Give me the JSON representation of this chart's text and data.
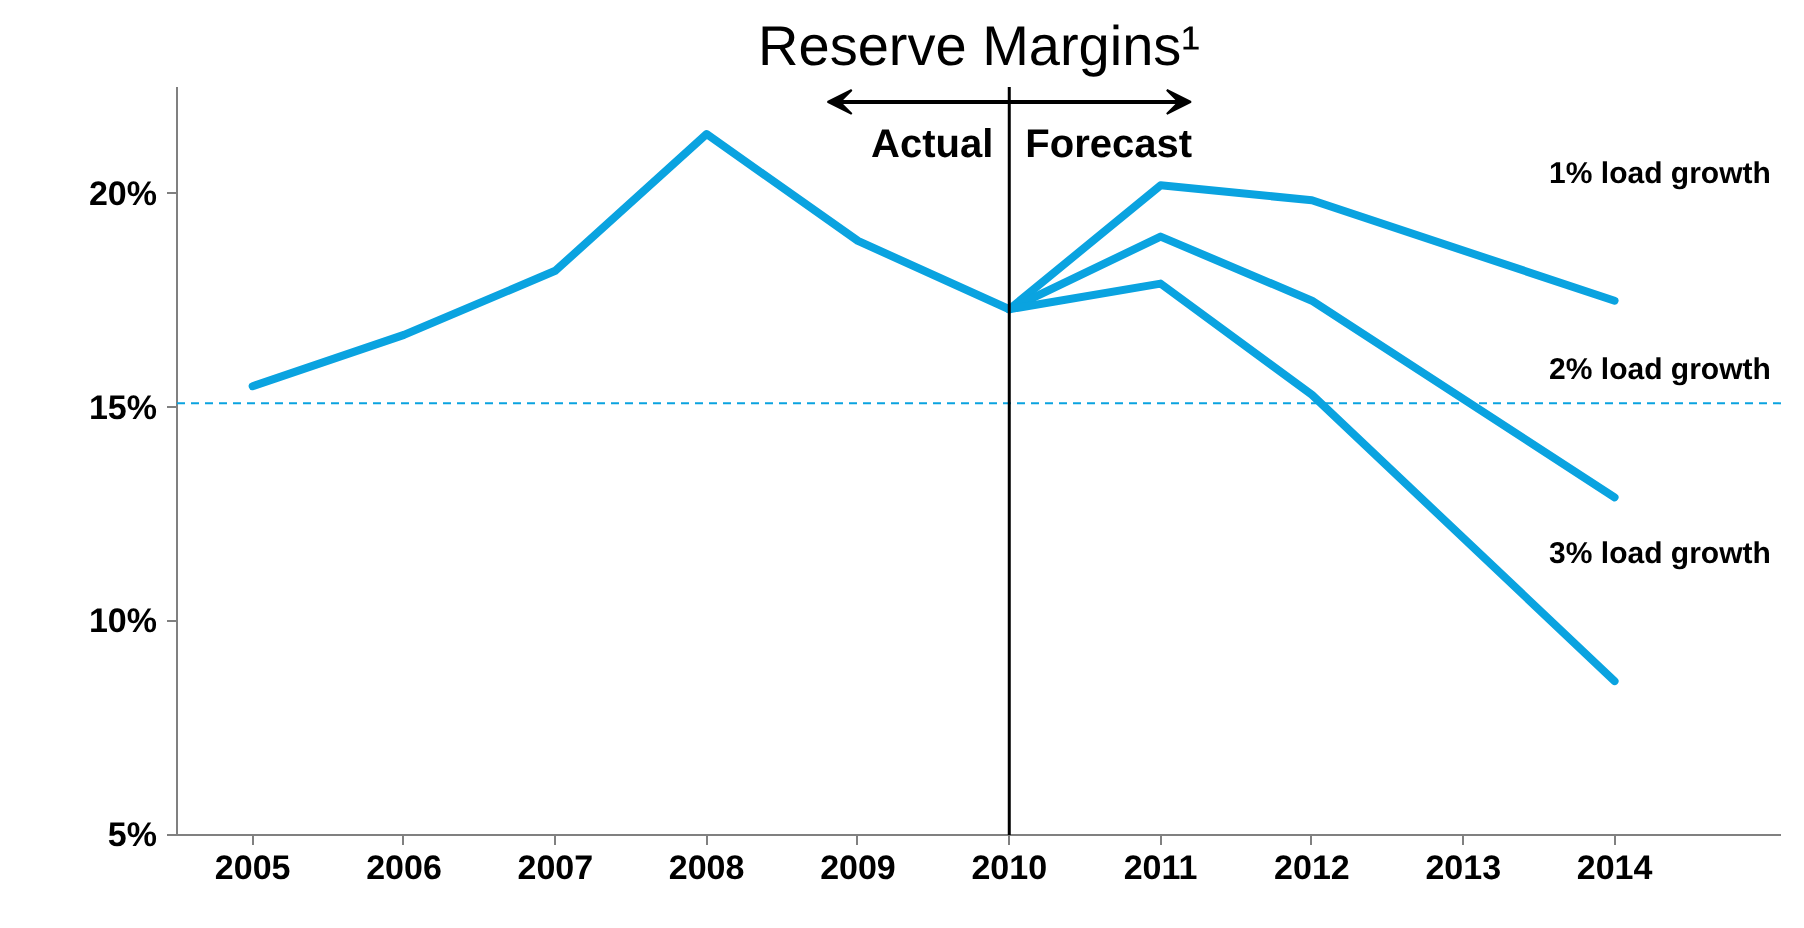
{
  "chart_data": {
    "type": "line",
    "title": "Reserve Margins¹",
    "xlim": [
      2004.5,
      2015.1
    ],
    "xticks": [
      2005,
      2006,
      2007,
      2008,
      2009,
      2010,
      2011,
      2012,
      2013,
      2014
    ],
    "ylim": [
      5,
      22.5
    ],
    "yticks": [
      {
        "value": 5,
        "label": "5%"
      },
      {
        "value": 10,
        "label": "10%"
      },
      {
        "value": 15,
        "label": "15%"
      },
      {
        "value": 20,
        "label": "20%"
      }
    ],
    "grid": false,
    "legend": false,
    "marker": "none",
    "line_style": "solid",
    "series": [
      {
        "color": "#0aa3e0",
        "x": [
          2005,
          2006,
          2007,
          2008,
          2009,
          2010
        ],
        "values": [
          15.5,
          16.7,
          18.2,
          21.4,
          18.9,
          17.3
        ]
      },
      {
        "name": "1% load growth",
        "color": "#0aa3e0",
        "x": [
          2010,
          2011,
          2012,
          2014
        ],
        "values": [
          17.3,
          20.2,
          19.85,
          17.5
        ]
      },
      {
        "name": "2% load growth",
        "color": "#0aa3e0",
        "x": [
          2010,
          2011,
          2012,
          2014
        ],
        "values": [
          17.3,
          19.0,
          17.5,
          12.9
        ]
      },
      {
        "name": "3% load growth",
        "color": "#0aa3e0",
        "x": [
          2010,
          2011,
          2012,
          2014
        ],
        "values": [
          17.3,
          17.9,
          15.3,
          8.6
        ]
      }
    ],
    "ref_lines": [
      {
        "axis": "y",
        "value": 15.1,
        "color": "#0aa3e0",
        "line_style": "dashed"
      },
      {
        "axis": "x",
        "value": 2010,
        "color": "#000000",
        "line_style": "solid"
      }
    ],
    "annotations": [
      "Actual",
      "Forecast"
    ]
  }
}
